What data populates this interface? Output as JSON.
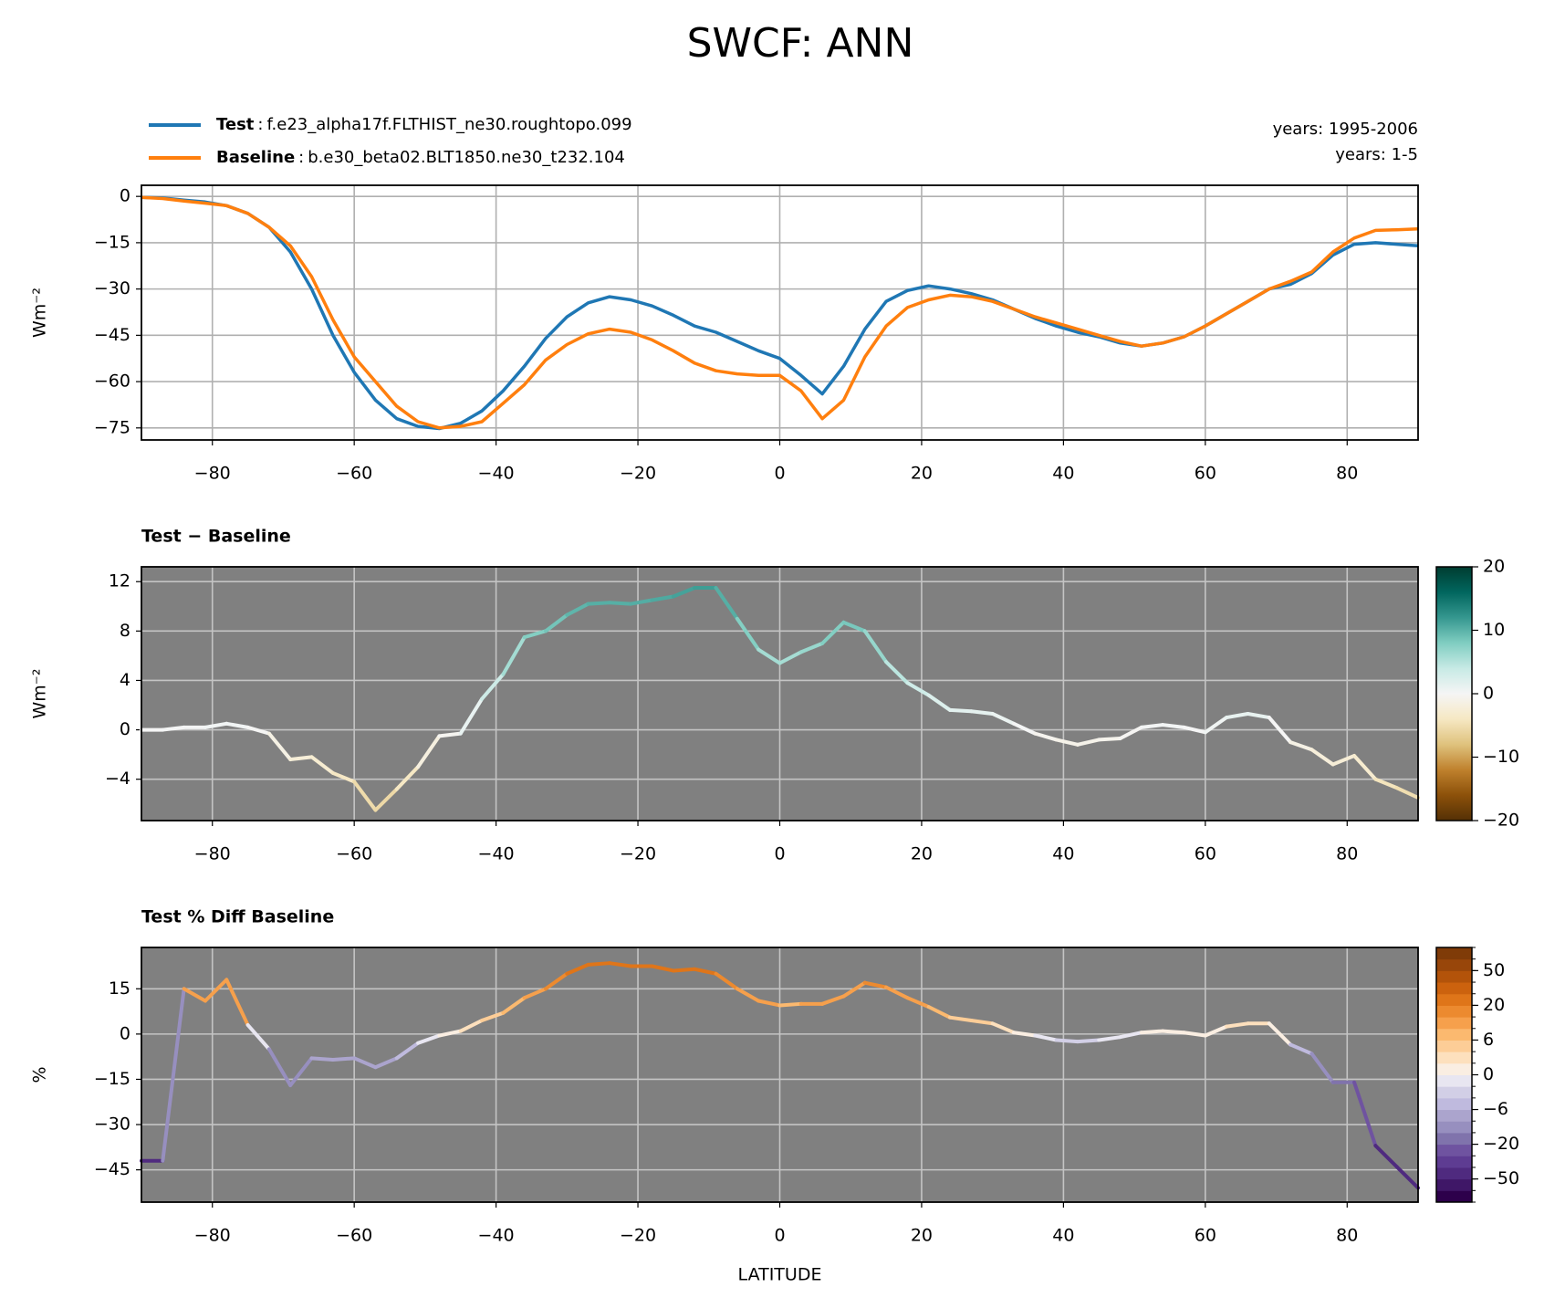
{
  "title": "SWCF: ANN",
  "chart_data": [
    {
      "type": "line",
      "legend_separator": ":",
      "annotations": [
        "years: 1995-2006",
        "years: 1-5"
      ],
      "ylabel": "Wm⁻²",
      "x": [
        -90,
        -87,
        -84,
        -81,
        -78,
        -75,
        -72,
        -69,
        -66,
        -63,
        -60,
        -57,
        -54,
        -51,
        -48,
        -45,
        -42,
        -39,
        -36,
        -33,
        -30,
        -27,
        -24,
        -21,
        -18,
        -15,
        -12,
        -9,
        -6,
        -3,
        0,
        3,
        6,
        9,
        12,
        15,
        18,
        21,
        24,
        27,
        30,
        33,
        36,
        39,
        42,
        45,
        48,
        51,
        54,
        57,
        60,
        63,
        66,
        69,
        72,
        75,
        78,
        81,
        84,
        87,
        90
      ],
      "series": [
        {
          "name": "Test",
          "case": "f.e23_alpha17f.FLTHIST_ne30.roughtopo.099",
          "color": "#1f77b4",
          "values": [
            -0.3,
            -0.5,
            -1.2,
            -1.8,
            -3,
            -5.5,
            -10,
            -18,
            -30,
            -45,
            -57,
            -66,
            -72,
            -74.5,
            -75.2,
            -73.5,
            -69.5,
            -63,
            -55,
            -46,
            -39,
            -34.5,
            -32.5,
            -33.5,
            -35.5,
            -38.5,
            -42,
            -44,
            -47,
            -50,
            -52.5,
            -58,
            -64,
            -55,
            -43,
            -34,
            -30.5,
            -29,
            -30,
            -31.5,
            -33.5,
            -36.5,
            -39.5,
            -42,
            -44,
            -45.5,
            -47.5,
            -48.5,
            -47.5,
            -45.5,
            -42,
            -38,
            -34,
            -30,
            -28.5,
            -25,
            -19,
            -15.5,
            -15,
            -15.5,
            -16
          ]
        },
        {
          "name": "Baseline",
          "case": "b.e30_beta02.BLT1850.ne30_t232.104",
          "color": "#ff7f0e",
          "values": [
            -0.3,
            -0.7,
            -1.5,
            -2.2,
            -3,
            -5.5,
            -10,
            -16,
            -26,
            -40,
            -52,
            -60,
            -68,
            -73,
            -75,
            -74.5,
            -73,
            -67,
            -61,
            -53,
            -48,
            -44.5,
            -43,
            -44,
            -46.5,
            -50,
            -54,
            -56.5,
            -57.5,
            -58,
            -58,
            -63,
            -72,
            -66,
            -52,
            -42,
            -36,
            -33.5,
            -32,
            -32.5,
            -34,
            -36.5,
            -39,
            -41,
            -43,
            -45,
            -47,
            -48.5,
            -47.5,
            -45.5,
            -42,
            -38,
            -34,
            -30,
            -27.5,
            -24.5,
            -18,
            -13.5,
            -11,
            -10.8,
            -10.5
          ]
        }
      ],
      "xlim": [
        -90,
        90
      ],
      "xticks": [
        {
          "value": -80,
          "label": "−80"
        },
        {
          "value": -60,
          "label": "−60"
        },
        {
          "value": -40,
          "label": "−40"
        },
        {
          "value": -20,
          "label": "−20"
        },
        0,
        20,
        40,
        60,
        80
      ],
      "ylim": [
        -78.9,
        3.6
      ],
      "yticks": [
        0,
        {
          "value": -15,
          "label": "−15"
        },
        {
          "value": -30,
          "label": "−30"
        },
        {
          "value": -45,
          "label": "−45"
        },
        {
          "value": -60,
          "label": "−60"
        },
        {
          "value": -75,
          "label": "−75"
        }
      ],
      "grid": true,
      "background": "#ffffff"
    },
    {
      "type": "colored_line",
      "title": "Test − Baseline",
      "ylabel": "Wm⁻²",
      "x": [
        -90,
        -87,
        -84,
        -81,
        -78,
        -75,
        -72,
        -69,
        -66,
        -63,
        -60,
        -57,
        -54,
        -51,
        -48,
        -45,
        -42,
        -39,
        -36,
        -33,
        -30,
        -27,
        -24,
        -21,
        -18,
        -15,
        -12,
        -9,
        -6,
        -3,
        0,
        3,
        6,
        9,
        12,
        15,
        18,
        21,
        24,
        27,
        30,
        33,
        36,
        39,
        42,
        45,
        48,
        51,
        54,
        57,
        60,
        63,
        66,
        69,
        72,
        75,
        78,
        81,
        84,
        87,
        90
      ],
      "values": [
        0,
        0,
        0.2,
        0.2,
        0.5,
        0.2,
        -0.3,
        -2.4,
        -2.2,
        -3.5,
        -4.2,
        -6.5,
        -4.8,
        -3,
        -0.5,
        -0.3,
        2.5,
        4.5,
        7.5,
        8,
        9.3,
        10.2,
        10.3,
        10.2,
        10.5,
        10.8,
        11.5,
        11.5,
        9,
        6.5,
        5.4,
        6.3,
        7,
        8.7,
        8,
        5.5,
        3.8,
        2.8,
        1.6,
        1.5,
        1.3,
        0.5,
        -0.3,
        -0.8,
        -1.2,
        -0.8,
        -0.7,
        0.2,
        0.4,
        0.2,
        -0.2,
        1,
        1.3,
        1,
        -1,
        -1.6,
        -2.8,
        -2.1,
        -4,
        -4.7,
        -5.5
      ],
      "xlim": [
        -90,
        90
      ],
      "xticks": [
        {
          "value": -80,
          "label": "−80"
        },
        {
          "value": -60,
          "label": "−60"
        },
        {
          "value": -40,
          "label": "−40"
        },
        {
          "value": -20,
          "label": "−20"
        },
        0,
        20,
        40,
        60,
        80
      ],
      "ylim": [
        -7.35,
        13.2
      ],
      "yticks": [
        {
          "value": -4,
          "label": "−4"
        },
        0,
        4,
        8,
        12
      ],
      "grid": true,
      "background": "#808080",
      "colorbar": {
        "lim": [
          -20,
          20
        ],
        "ticks": [
          {
            "value": -20,
            "label": "−20"
          },
          {
            "value": -10,
            "label": "−10"
          },
          0,
          10,
          20
        ],
        "colors": [
          "#543005",
          "#8c510a",
          "#bf812d",
          "#dfc27d",
          "#f6e8c3",
          "#f5f5f5",
          "#c7eae5",
          "#80cdc1",
          "#35978f",
          "#01665e",
          "#003c30"
        ]
      }
    },
    {
      "type": "colored_line",
      "title": "Test % Diff Baseline",
      "ylabel": "%",
      "xlabel": "LATITUDE",
      "x": [
        -90,
        -87,
        -84,
        -81,
        -78,
        -75,
        -72,
        -69,
        -66,
        -63,
        -60,
        -57,
        -54,
        -51,
        -48,
        -45,
        -42,
        -39,
        -36,
        -33,
        -30,
        -27,
        -24,
        -21,
        -18,
        -15,
        -12,
        -9,
        -6,
        -3,
        0,
        3,
        6,
        9,
        12,
        15,
        18,
        21,
        24,
        27,
        30,
        33,
        36,
        39,
        42,
        45,
        48,
        51,
        54,
        57,
        60,
        63,
        66,
        69,
        72,
        75,
        78,
        81,
        84,
        87,
        90
      ],
      "values": [
        -42,
        -42,
        15,
        11,
        18,
        3,
        -5,
        -17,
        -8,
        -8.5,
        -8,
        -11,
        -8,
        -3,
        -0.5,
        1,
        4.5,
        7,
        12,
        15,
        20,
        23,
        23.5,
        22.5,
        22.5,
        21,
        21.5,
        20,
        15,
        11,
        9.5,
        10,
        10,
        12.5,
        17,
        15.5,
        12,
        9,
        5.5,
        4.5,
        3.5,
        0.5,
        -0.5,
        -2,
        -2.5,
        -2,
        -1,
        0.5,
        1,
        0.5,
        -0.5,
        2.5,
        3.5,
        3.5,
        -3.5,
        -6.5,
        -16,
        -16,
        -37,
        -44,
        -51
      ],
      "xlim": [
        -90,
        90
      ],
      "xticks": [
        {
          "value": -80,
          "label": "−80"
        },
        {
          "value": -60,
          "label": "−60"
        },
        {
          "value": -40,
          "label": "−40"
        },
        {
          "value": -20,
          "label": "−20"
        },
        0,
        20,
        40,
        60,
        80
      ],
      "ylim": [
        -55.7,
        28.7
      ],
      "yticks": [
        {
          "value": -45,
          "label": "−45"
        },
        {
          "value": -30,
          "label": "−30"
        },
        {
          "value": -15,
          "label": "−15"
        },
        0,
        15
      ],
      "grid": true,
      "background": "#808080",
      "colorbar": {
        "levels": [
          -100,
          -70,
          -50,
          -40,
          -30,
          -20,
          -15,
          -10,
          -6,
          -4,
          -2,
          0,
          2,
          4,
          6,
          10,
          15,
          20,
          30,
          40,
          50,
          70,
          100
        ],
        "ticks": [
          {
            "value": -50,
            "label": "−50"
          },
          {
            "value": -20,
            "label": "−20"
          },
          {
            "value": -6,
            "label": "−6"
          },
          0,
          6,
          20,
          50
        ],
        "colors": [
          "#2d004b",
          "#3f1767",
          "#4f2a7f",
          "#5e3c92",
          "#6f53a0",
          "#8073ac",
          "#978fbf",
          "#aba4cd",
          "#bfbade",
          "#d2cfe6",
          "#e8e6f1",
          "#faeee2",
          "#fde0bd",
          "#fdcd97",
          "#fbb96f",
          "#f6a04c",
          "#ec8a2f",
          "#df7519",
          "#cc620e",
          "#b3530a",
          "#98460a",
          "#7f3b08"
        ]
      }
    }
  ]
}
